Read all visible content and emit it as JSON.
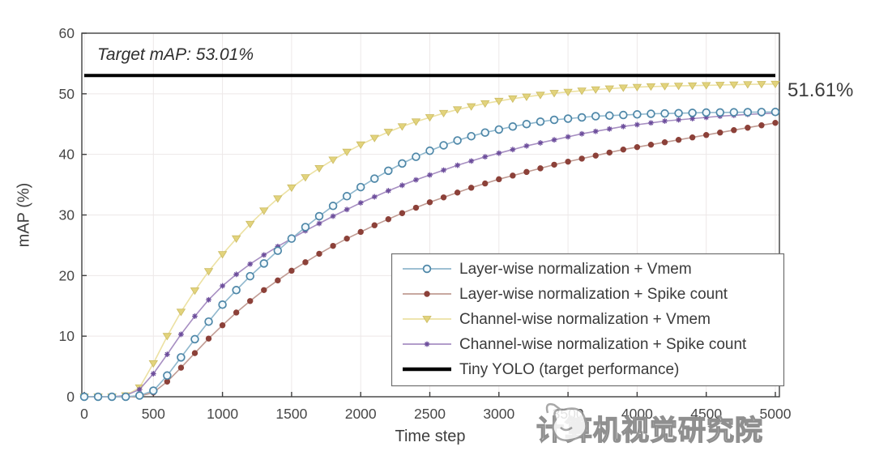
{
  "figure": {
    "target_annotation": "Target mAP: 53.01%",
    "end_label": "51.61%",
    "watermark_text": "计算机视觉研究院"
  },
  "chart_data": {
    "type": "line",
    "title": "",
    "xlabel": "Time step",
    "ylabel": "mAP (%)",
    "xlim": [
      0,
      5000
    ],
    "ylim": [
      0,
      60
    ],
    "x_ticks": [
      0,
      500,
      1000,
      1500,
      2000,
      2500,
      3000,
      3500,
      4000,
      4500,
      5000
    ],
    "y_ticks": [
      0,
      10,
      20,
      30,
      40,
      50,
      60
    ],
    "grid": true,
    "legend_position": "lower-right-inside",
    "x_step": 100,
    "target_line": {
      "label": "Tiny YOLO (target performance)",
      "value": 53.01,
      "color": "#000000",
      "end_value_label": "51.61%"
    },
    "series": [
      {
        "name": "Layer-wise normalization + Vmem",
        "marker": "circle-open",
        "line_color": "#8fb7cd",
        "marker_color": "#4e87a8",
        "values": [
          0,
          0,
          0,
          0,
          0.2,
          1.0,
          3.5,
          6.5,
          9.5,
          12.4,
          15.2,
          17.6,
          19.9,
          22.0,
          24.1,
          26.1,
          28.0,
          29.8,
          31.5,
          33.1,
          34.6,
          36.0,
          37.3,
          38.5,
          39.6,
          40.6,
          41.5,
          42.3,
          43.0,
          43.6,
          44.1,
          44.6,
          45.0,
          45.4,
          45.7,
          45.9,
          46.1,
          46.3,
          46.4,
          46.5,
          46.6,
          46.7,
          46.75,
          46.8,
          46.85,
          46.9,
          46.92,
          46.95,
          46.97,
          46.99,
          47.0
        ]
      },
      {
        "name": "Layer-wise normalization + Spike count",
        "marker": "dot",
        "line_color": "#c09b93",
        "marker_color": "#8c4139",
        "values": [
          0,
          0,
          0,
          0,
          0.1,
          0.7,
          2.5,
          4.8,
          7.2,
          9.6,
          11.8,
          13.9,
          15.8,
          17.6,
          19.2,
          20.8,
          22.2,
          23.6,
          24.9,
          26.1,
          27.2,
          28.3,
          29.3,
          30.3,
          31.2,
          32.1,
          32.9,
          33.7,
          34.5,
          35.2,
          35.9,
          36.5,
          37.1,
          37.7,
          38.3,
          38.8,
          39.3,
          39.8,
          40.3,
          40.8,
          41.2,
          41.6,
          42.0,
          42.4,
          42.8,
          43.2,
          43.6,
          44.0,
          44.4,
          44.8,
          45.2
        ]
      },
      {
        "name": "Channel-wise normalization + Vmem",
        "marker": "triangle-down",
        "line_color": "#ece1a2",
        "marker_color": "#e2d37c",
        "values": [
          0,
          0,
          0,
          0.2,
          1.5,
          5.5,
          10.0,
          14.0,
          17.5,
          20.7,
          23.5,
          26.1,
          28.5,
          30.7,
          32.7,
          34.5,
          36.2,
          37.7,
          39.1,
          40.4,
          41.6,
          42.7,
          43.7,
          44.6,
          45.4,
          46.1,
          46.8,
          47.4,
          47.9,
          48.4,
          48.8,
          49.2,
          49.5,
          49.8,
          50.1,
          50.3,
          50.5,
          50.7,
          50.85,
          51.0,
          51.1,
          51.2,
          51.25,
          51.3,
          51.35,
          51.4,
          51.45,
          51.5,
          51.55,
          51.58,
          51.61
        ]
      },
      {
        "name": "Channel-wise normalization + Spike count",
        "marker": "asterisk",
        "line_color": "#a78fc2",
        "marker_color": "#6d4e9c",
        "values": [
          0,
          0,
          0,
          0.2,
          1.2,
          3.8,
          7.0,
          10.3,
          13.3,
          16.0,
          18.3,
          20.2,
          21.9,
          23.4,
          24.8,
          26.1,
          27.4,
          28.6,
          29.8,
          30.9,
          32.0,
          33.0,
          34.0,
          34.9,
          35.8,
          36.6,
          37.4,
          38.2,
          38.9,
          39.6,
          40.2,
          40.8,
          41.4,
          41.9,
          42.4,
          42.9,
          43.4,
          43.8,
          44.2,
          44.6,
          44.9,
          45.2,
          45.5,
          45.7,
          45.9,
          46.1,
          46.3,
          46.45,
          46.6,
          46.7,
          46.8
        ]
      }
    ]
  }
}
